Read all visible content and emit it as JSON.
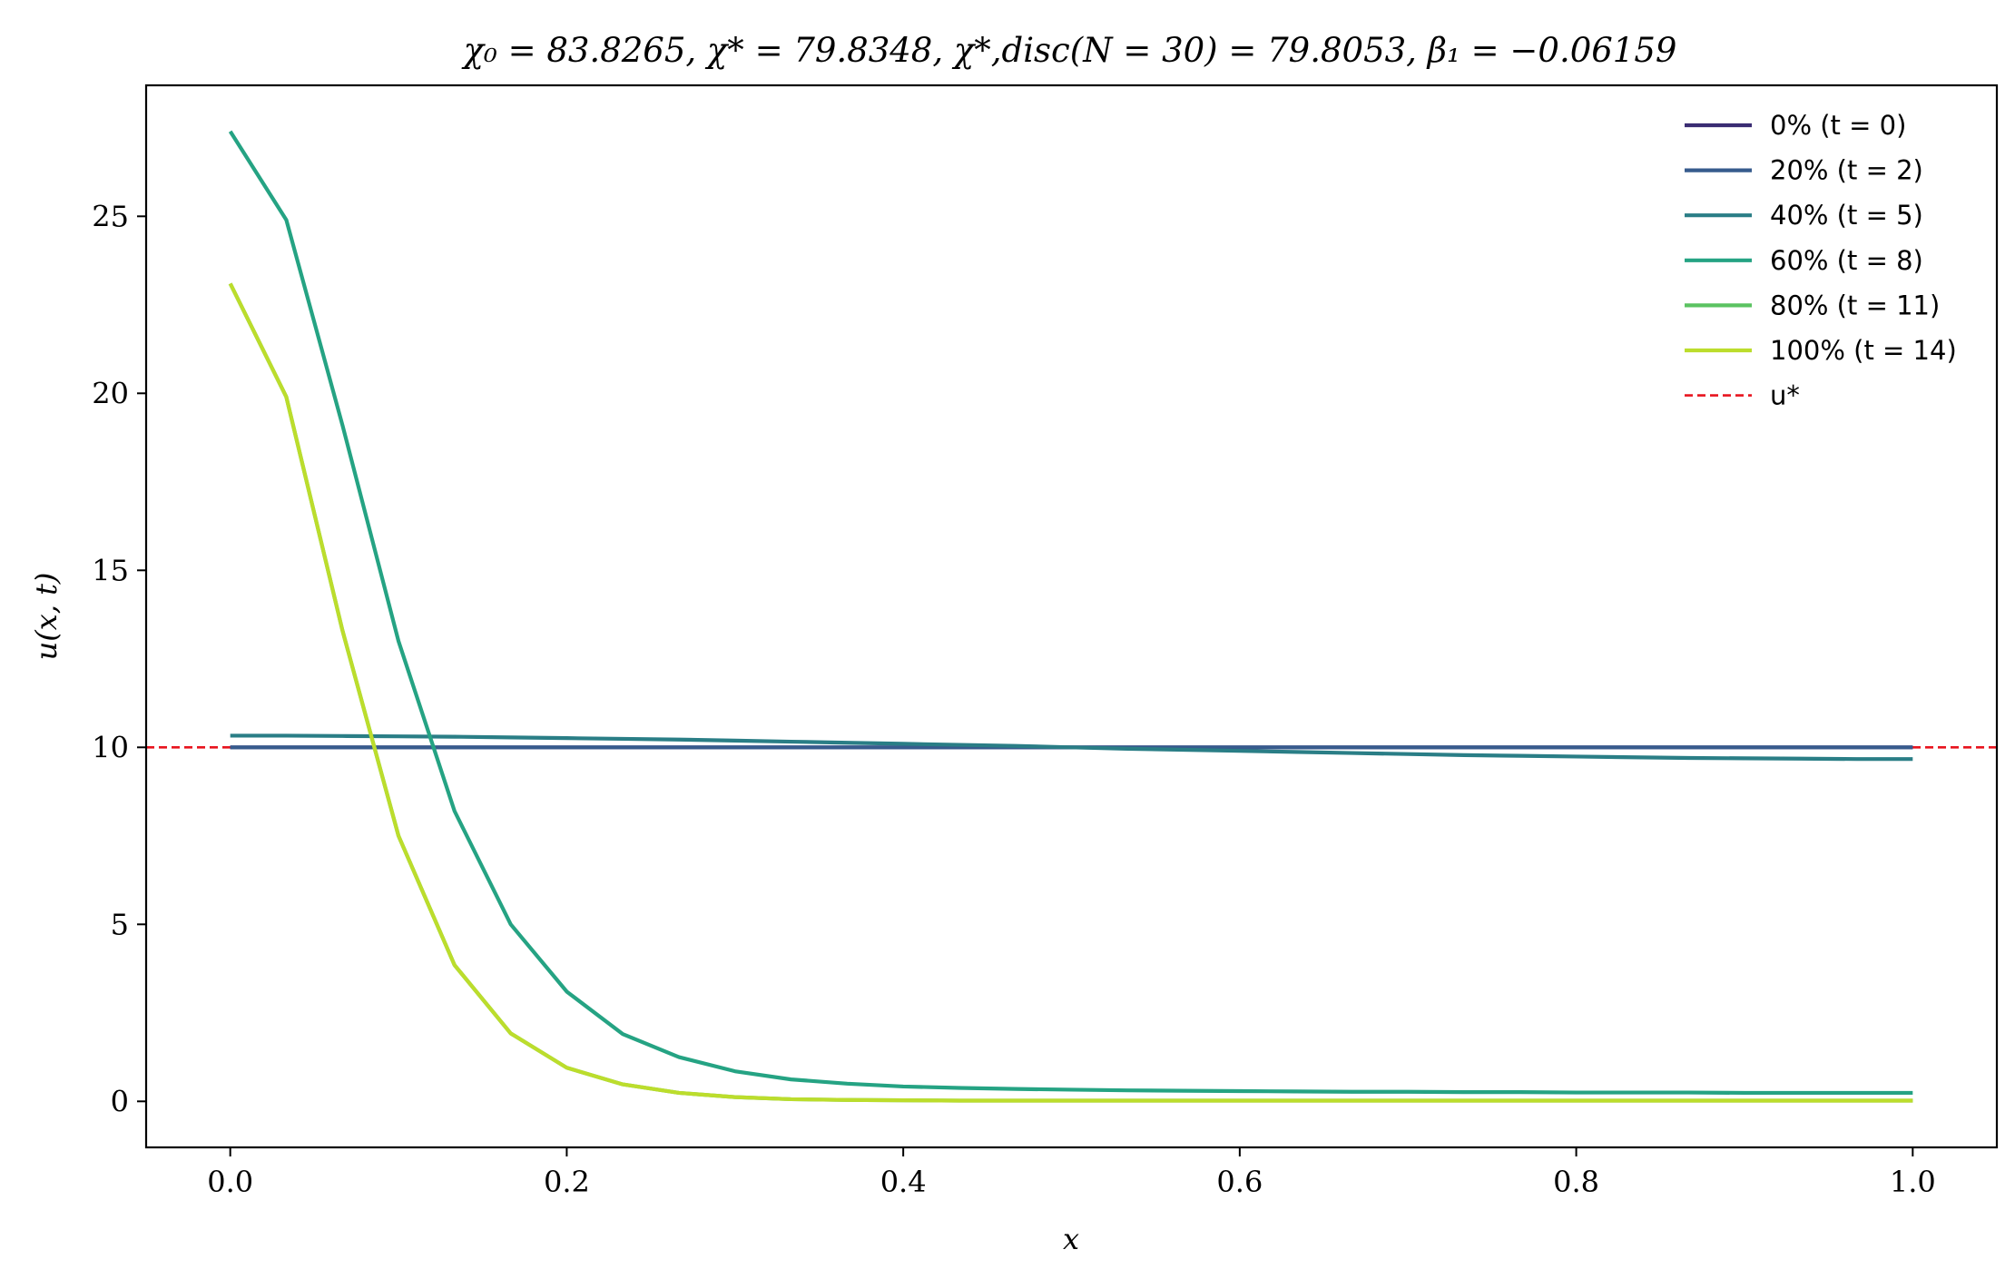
{
  "chart_data": {
    "type": "line",
    "title": "χ₀ = 83.8265,  χ* = 79.8348,  χ*,disc(N = 30) = 79.8053,  β₁ = −0.06159",
    "xlabel": "x",
    "ylabel": "u(x, t)",
    "xlim": [
      -0.05,
      1.05
    ],
    "ylim": [
      -1.3,
      28.7
    ],
    "xticks": [
      0.0,
      0.2,
      0.4,
      0.6,
      0.8,
      1.0
    ],
    "xtick_labels": [
      "0.0",
      "0.2",
      "0.4",
      "0.6",
      "0.8",
      "1.0"
    ],
    "yticks": [
      0,
      5,
      10,
      15,
      20,
      25
    ],
    "ytick_labels": [
      "0",
      "5",
      "10",
      "15",
      "20",
      "25"
    ],
    "grid": false,
    "legend_position": "top-right",
    "x": [
      0.0,
      0.0333,
      0.0667,
      0.1,
      0.1333,
      0.1667,
      0.2,
      0.2333,
      0.2667,
      0.3,
      0.3333,
      0.3667,
      0.4,
      0.4333,
      0.4667,
      0.5,
      0.5333,
      0.5667,
      0.6,
      0.6333,
      0.6667,
      0.7,
      0.7333,
      0.7667,
      0.8,
      0.8333,
      0.8667,
      0.9,
      0.9333,
      0.9667,
      1.0
    ],
    "series": [
      {
        "name": "0% (t = 0)",
        "color": "#3b2d73",
        "values": [
          10,
          10,
          10,
          10,
          10,
          10,
          10,
          10,
          10,
          10,
          10,
          10,
          10,
          10,
          10,
          10,
          10,
          10,
          10,
          10,
          10,
          10,
          10,
          10,
          10,
          10,
          10,
          10,
          10,
          10,
          10
        ]
      },
      {
        "name": "20% (t = 2)",
        "color": "#375b8d",
        "values": [
          10,
          10,
          10,
          10,
          10,
          10,
          10,
          10,
          10,
          10,
          10,
          10,
          10,
          10,
          10,
          10,
          10,
          10,
          10,
          10,
          10,
          10,
          10,
          10,
          10,
          10,
          10,
          10,
          10,
          10,
          10
        ]
      },
      {
        "name": "40% (t = 5)",
        "color": "#2a7e86",
        "values": [
          10.33,
          10.33,
          10.32,
          10.31,
          10.3,
          10.28,
          10.26,
          10.24,
          10.22,
          10.19,
          10.16,
          10.13,
          10.1,
          10.07,
          10.04,
          10.0,
          9.96,
          9.93,
          9.9,
          9.87,
          9.84,
          9.81,
          9.78,
          9.76,
          9.74,
          9.72,
          9.7,
          9.69,
          9.68,
          9.67,
          9.67
        ]
      },
      {
        "name": "60% (t = 8)",
        "color": "#25a383",
        "values": [
          27.4,
          24.9,
          19.1,
          13.0,
          8.2,
          5.0,
          3.1,
          1.9,
          1.25,
          0.85,
          0.62,
          0.5,
          0.42,
          0.38,
          0.35,
          0.33,
          0.31,
          0.3,
          0.29,
          0.28,
          0.27,
          0.27,
          0.26,
          0.26,
          0.25,
          0.25,
          0.25,
          0.24,
          0.24,
          0.24,
          0.24
        ]
      },
      {
        "name": "80% (t = 11)",
        "color": "#5bc361",
        "values": [
          23.1,
          19.9,
          13.3,
          7.5,
          3.85,
          1.92,
          0.95,
          0.48,
          0.24,
          0.12,
          0.06,
          0.04,
          0.03,
          0.02,
          0.02,
          0.02,
          0.02,
          0.02,
          0.02,
          0.02,
          0.02,
          0.02,
          0.02,
          0.02,
          0.02,
          0.02,
          0.02,
          0.02,
          0.02,
          0.02,
          0.02
        ]
      },
      {
        "name": "100% (t = 14)",
        "color": "#bcdd2c",
        "values": [
          23.1,
          19.9,
          13.3,
          7.5,
          3.85,
          1.92,
          0.95,
          0.48,
          0.24,
          0.12,
          0.06,
          0.04,
          0.03,
          0.02,
          0.02,
          0.02,
          0.02,
          0.02,
          0.02,
          0.02,
          0.02,
          0.02,
          0.02,
          0.02,
          0.02,
          0.02,
          0.02,
          0.02,
          0.02,
          0.02,
          0.02
        ]
      }
    ],
    "reference_line": {
      "name": "u*",
      "y": 10,
      "color": "#e8141e",
      "style": "dashed"
    }
  }
}
